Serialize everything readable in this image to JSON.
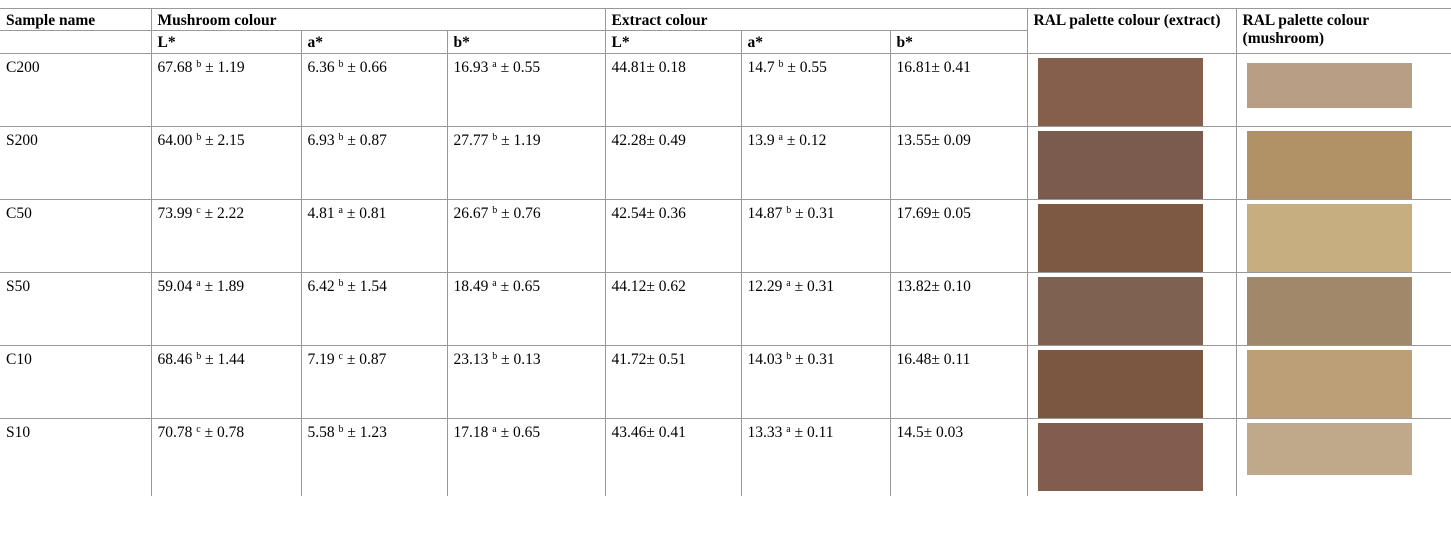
{
  "headers": {
    "sample_name": "Sample name",
    "mushroom_colour": "Mushroom colour",
    "extract_colour": "Extract colour",
    "ral_extract": "RAL palette colour (extract)",
    "ral_mushroom": "RAL palette colour (mushroom)",
    "L": "L*",
    "a": "a*",
    "b": "b*"
  },
  "rows": [
    {
      "sample": "C200",
      "m_L": "67.68",
      "m_L_sup": "b",
      "m_L_sd": "± 1.19",
      "m_a": "6.36",
      "m_a_sup": "b",
      "m_a_sd": "± 0.66",
      "m_b": "16.93",
      "m_b_sup": "a",
      "m_b_sd": "± 0.55",
      "e_L": "44.81± 0.18",
      "e_a": "14.7",
      "e_a_sup": "b",
      "e_a_sd": "± 0.55",
      "e_b": "16.81± 0.41",
      "extract_color": "#855f4b",
      "mushroom_color": "#b79e84"
    },
    {
      "sample": "S200",
      "m_L": "64.00",
      "m_L_sup": "b",
      "m_L_sd": "± 2.15",
      "m_a": "6.93",
      "m_a_sup": "b",
      "m_a_sd": "± 0.87",
      "m_b": "27.77",
      "m_b_sup": "b",
      "m_b_sd": "± 1.19",
      "e_L": "42.28± 0.49",
      "e_a": "13.9",
      "e_a_sup": "a",
      "e_a_sd": "± 0.12",
      "e_b": "13.55± 0.09",
      "extract_color": "#7b5b4d",
      "mushroom_color": "#b09266"
    },
    {
      "sample": "C50",
      "m_L": "73.99",
      "m_L_sup": "c",
      "m_L_sd": "± 2.22",
      "m_a": "4.81",
      "m_a_sup": "a",
      "m_a_sd": "± 0.81",
      "m_b": "26.67",
      "m_b_sup": "b",
      "m_b_sd": "± 0.76",
      "e_L": "42.54± 0.36",
      "e_a": "14.87",
      "e_a_sup": "b",
      "e_a_sd": "± 0.31",
      "e_b": "17.69± 0.05",
      "extract_color": "#7d5944",
      "mushroom_color": "#c7ae81"
    },
    {
      "sample": "S50",
      "m_L": "59.04",
      "m_L_sup": "a",
      "m_L_sd": "± 1.89",
      "m_a": "6.42",
      "m_a_sup": "b",
      "m_a_sd": "± 1.54",
      "m_b": "18.49",
      "m_b_sup": "a",
      "m_b_sd": "± 0.65",
      "e_L": "44.12± 0.62",
      "e_a": "12.29",
      "e_a_sup": "a",
      "e_a_sd": "± 0.31",
      "e_b": "13.82± 0.10",
      "extract_color": "#7f6152",
      "mushroom_color": "#a1886b"
    },
    {
      "sample": "C10",
      "m_L": "68.46",
      "m_L_sup": "b",
      "m_L_sd": "± 1.44",
      "m_a": "7.19",
      "m_a_sup": "c",
      "m_a_sd": "± 0.87",
      "m_b": "23.13",
      "m_b_sup": "b",
      "m_b_sd": "± 0.13",
      "e_L": "41.72± 0.51",
      "e_a": "14.03",
      "e_a_sup": "b",
      "e_a_sd": "± 0.31",
      "e_b": "16.48± 0.11",
      "extract_color": "#7b5640",
      "mushroom_color": "#bc9f77"
    },
    {
      "sample": "S10",
      "m_L": "70.78",
      "m_L_sup": "c",
      "m_L_sd": "± 0.78",
      "m_a": "5.58",
      "m_a_sup": "b",
      "m_a_sd": "± 1.23",
      "m_b": "17.18",
      "m_b_sup": "a",
      "m_b_sd": "± 0.65",
      "e_L": "43.46± 0.41",
      "e_a": "13.33",
      "e_a_sup": "a",
      "e_a_sd": "± 0.11",
      "e_b": "14.5± 0.03",
      "extract_color": "#825d4e",
      "mushroom_color": "#c0a88b"
    }
  ]
}
